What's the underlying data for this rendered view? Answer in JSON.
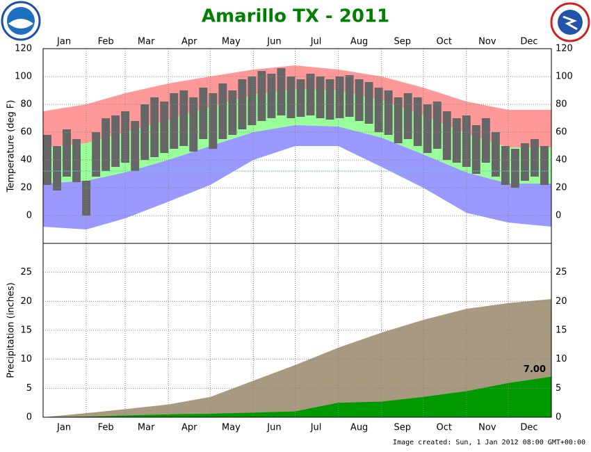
{
  "title": "Amarillo TX - 2011",
  "footer": "Image created: Sun, 1 Jan 2012 08:00 GMT+00:00",
  "chart_data": [
    {
      "type": "temperature",
      "ylabel": "Temperature (deg F)",
      "xlim": [
        1,
        366
      ],
      "ylim": [
        -20,
        120
      ],
      "yticks": [
        0,
        20,
        40,
        60,
        80,
        100,
        120
      ],
      "xticks": [
        {
          "value": 16,
          "label": "Jan"
        },
        {
          "value": 46,
          "label": "Feb"
        },
        {
          "value": 75,
          "label": "Mar"
        },
        {
          "value": 106,
          "label": "Apr"
        },
        {
          "value": 136,
          "label": "May"
        },
        {
          "value": 167,
          "label": "Jun"
        },
        {
          "value": 197,
          "label": "Jul"
        },
        {
          "value": 228,
          "label": "Aug"
        },
        {
          "value": 259,
          "label": "Sep"
        },
        {
          "value": 289,
          "label": "Oct"
        },
        {
          "value": 320,
          "label": "Nov"
        },
        {
          "value": 350,
          "label": "Dec"
        }
      ],
      "xgrid": [
        32,
        60,
        91,
        121,
        152,
        182,
        213,
        244,
        274,
        305,
        335
      ],
      "grid": true,
      "reference_line": {
        "value": 32,
        "color": "#66cccc"
      },
      "x": [
        1,
        32,
        60,
        91,
        121,
        152,
        182,
        213,
        244,
        274,
        305,
        335,
        366
      ],
      "series": [
        {
          "color": "#ff9999",
          "values": [
            75,
            80,
            88,
            95,
            100,
            105,
            108,
            105,
            100,
            92,
            82,
            76,
            76
          ]
        },
        {
          "color": "#99ff99",
          "values": [
            49,
            52,
            60,
            69,
            78,
            87,
            91,
            90,
            83,
            72,
            59,
            49,
            49
          ]
        },
        {
          "color": "#9999ff",
          "values": [
            23,
            25,
            31,
            40,
            50,
            60,
            65,
            64,
            56,
            44,
            31,
            23,
            23
          ]
        },
        {
          "values": [
            -8,
            -10,
            -2,
            10,
            22,
            40,
            50,
            50,
            35,
            20,
            2,
            -5,
            -8
          ]
        }
      ],
      "actual": {
        "color": "#666666",
        "x": [
          4,
          11,
          18,
          25,
          32,
          39,
          46,
          53,
          60,
          67,
          74,
          81,
          88,
          95,
          102,
          109,
          116,
          123,
          130,
          137,
          144,
          151,
          158,
          165,
          172,
          179,
          186,
          193,
          200,
          207,
          214,
          221,
          228,
          235,
          242,
          249,
          256,
          263,
          270,
          277,
          284,
          291,
          298,
          305,
          312,
          319,
          326,
          333,
          340,
          347,
          354,
          361
        ],
        "high": [
          58,
          50,
          62,
          55,
          25,
          60,
          70,
          72,
          75,
          68,
          80,
          85,
          82,
          88,
          90,
          85,
          92,
          88,
          95,
          90,
          98,
          100,
          104,
          102,
          106,
          100,
          98,
          102,
          100,
          98,
          100,
          101,
          98,
          96,
          92,
          90,
          85,
          88,
          85,
          80,
          82,
          75,
          70,
          72,
          65,
          70,
          60,
          50,
          48,
          52,
          55,
          50
        ],
        "low": [
          22,
          18,
          28,
          24,
          0,
          28,
          32,
          35,
          38,
          32,
          40,
          42,
          45,
          48,
          50,
          46,
          55,
          48,
          55,
          58,
          62,
          65,
          68,
          70,
          72,
          70,
          71,
          72,
          70,
          69,
          70,
          71,
          68,
          66,
          60,
          58,
          52,
          55,
          50,
          45,
          48,
          40,
          38,
          35,
          30,
          38,
          28,
          22,
          20,
          25,
          28,
          22
        ]
      }
    },
    {
      "type": "area",
      "ylabel": "Precipitation (inches)",
      "xlim": [
        1,
        366
      ],
      "ylim": [
        0,
        30
      ],
      "yticks": [
        0,
        5,
        10,
        15,
        20,
        25
      ],
      "xticks": [
        {
          "value": 16,
          "label": "Jan"
        },
        {
          "value": 46,
          "label": "Feb"
        },
        {
          "value": 75,
          "label": "Mar"
        },
        {
          "value": 106,
          "label": "Apr"
        },
        {
          "value": 136,
          "label": "May"
        },
        {
          "value": 167,
          "label": "Jun"
        },
        {
          "value": 197,
          "label": "Jul"
        },
        {
          "value": 228,
          "label": "Aug"
        },
        {
          "value": 259,
          "label": "Sep"
        },
        {
          "value": 289,
          "label": "Oct"
        },
        {
          "value": 320,
          "label": "Nov"
        },
        {
          "value": 350,
          "label": "Dec"
        }
      ],
      "xgrid": [
        32,
        60,
        91,
        121,
        152,
        182,
        213,
        244,
        274,
        305,
        335
      ],
      "grid": true,
      "x": [
        1,
        32,
        60,
        91,
        121,
        152,
        182,
        213,
        244,
        274,
        305,
        335,
        366
      ],
      "series": [
        {
          "color": "#a89a80",
          "values": [
            0,
            0.7,
            1.4,
            2.2,
            3.5,
            6.3,
            9.0,
            12.0,
            14.6,
            16.8,
            18.7,
            19.7,
            20.4
          ]
        },
        {
          "color": "#009900",
          "values": [
            0,
            0.1,
            0.3,
            0.5,
            0.6,
            0.8,
            1.0,
            2.5,
            2.7,
            3.5,
            4.5,
            5.9,
            7
          ],
          "end_label": "7.00"
        }
      ]
    }
  ]
}
